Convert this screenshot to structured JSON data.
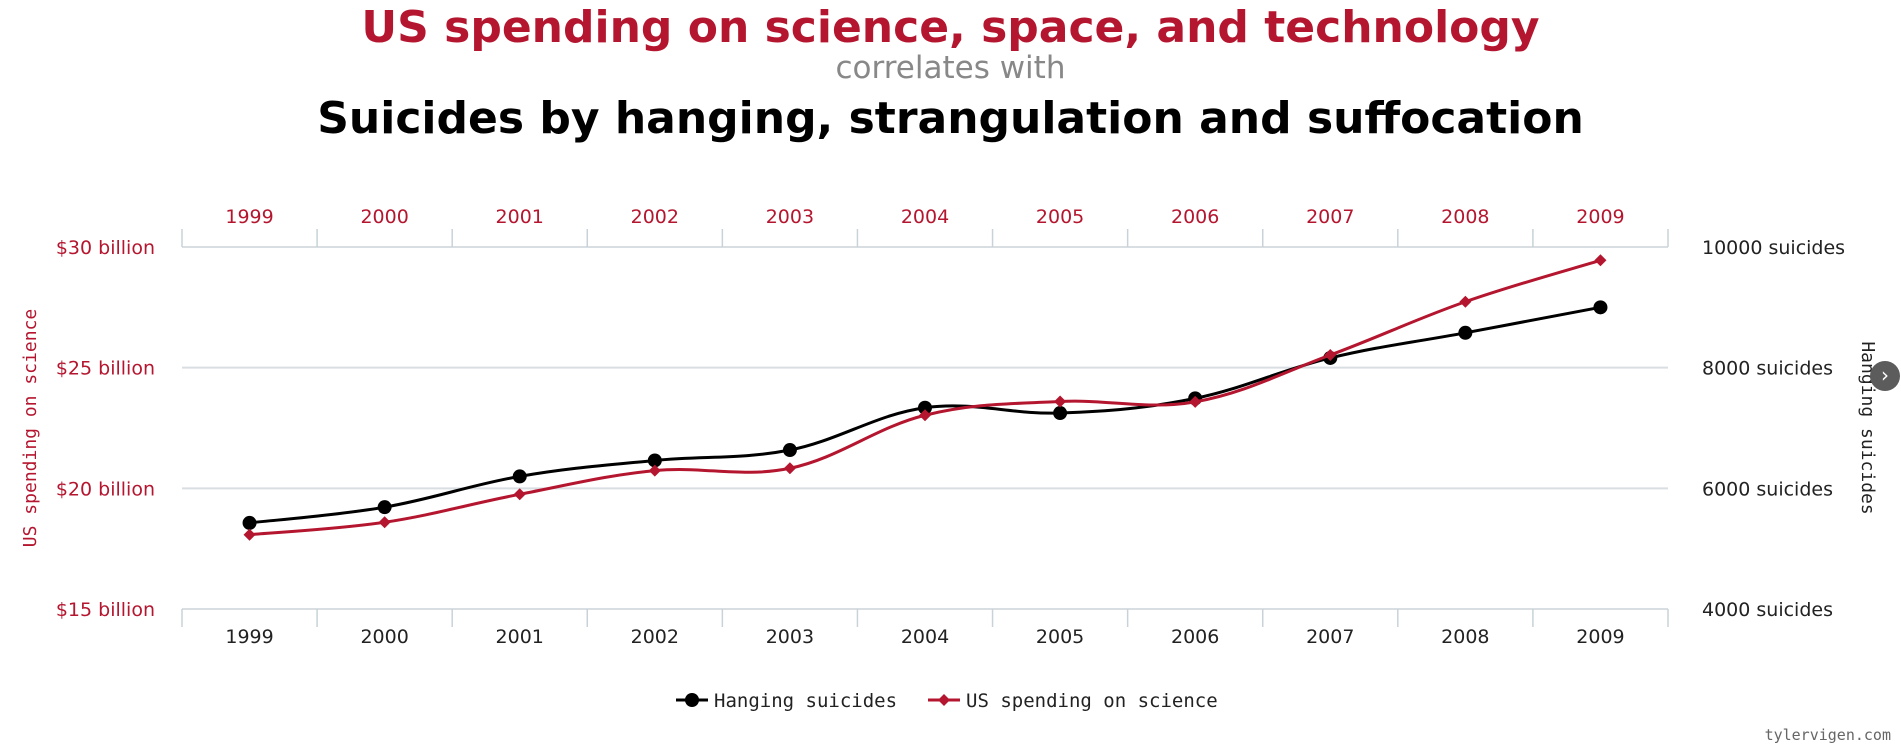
{
  "header": {
    "title": "US spending on science, space, and technology",
    "connector": "correlates with",
    "subtitle": "Suicides by hanging, strangulation and suffocation"
  },
  "watermark": "tylervigen.com",
  "nav": {
    "icon": "chevron-right-icon",
    "glyph": "›"
  },
  "colors": {
    "red": "#b5162f",
    "black": "#000000",
    "gray": "#888888"
  },
  "chart_data": {
    "type": "line",
    "categories": [
      "1999",
      "2000",
      "2001",
      "2002",
      "2003",
      "2004",
      "2005",
      "2006",
      "2007",
      "2008",
      "2009"
    ],
    "series": [
      {
        "name": "Hanging suicides",
        "axis": "right",
        "color": "#000000",
        "marker": "circle",
        "values": [
          5427,
          5688,
          6198,
          6462,
          6635,
          7336,
          7248,
          7491,
          8161,
          8578,
          9000
        ]
      },
      {
        "name": "US spending on science",
        "axis": "left",
        "color": "#b5162f",
        "marker": "diamond",
        "values": [
          18.079,
          18.594,
          19.753,
          20.734,
          20.831,
          23.029,
          23.597,
          23.584,
          25.525,
          27.731,
          29.449
        ]
      }
    ],
    "left_axis": {
      "label": "US spending on science",
      "ticks": [
        "$15 billion",
        "$20 billion",
        "$25 billion",
        "$30 billion"
      ],
      "range": [
        15,
        30
      ]
    },
    "right_axis": {
      "label": "Hanging suicides",
      "ticks": [
        "4000 suicides",
        "6000 suicides",
        "8000 suicides",
        "10000 suicides"
      ],
      "range": [
        4000,
        10000
      ]
    },
    "grid": true,
    "legend": "bottom-center"
  }
}
